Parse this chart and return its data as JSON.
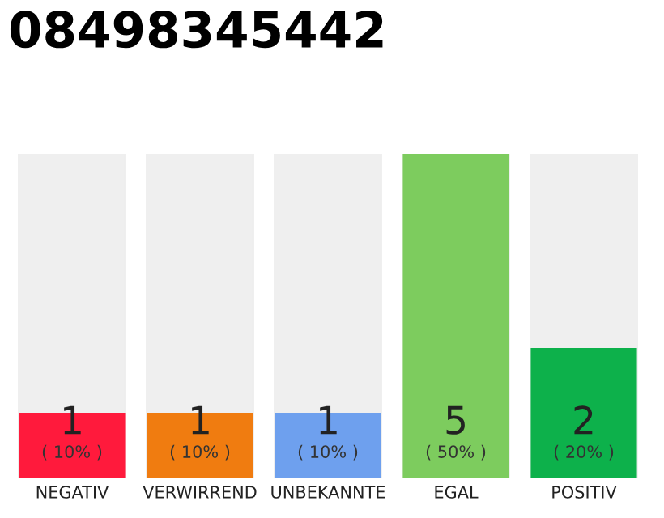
{
  "chart_data": {
    "type": "bar",
    "title": "08498345442",
    "categories": [
      "NEGATIV",
      "VERWIRREND",
      "UNBEKANNTE",
      "EGAL",
      "POSITIV"
    ],
    "values": [
      1,
      1,
      1,
      5,
      2
    ],
    "colors": [
      "#ff1a3c",
      "#f07c10",
      "#6ea0ee",
      "#7dcc5e",
      "#0db14b"
    ],
    "ylim": [
      0,
      5
    ],
    "data_labels": true,
    "grid": false,
    "legend": false,
    "tick_labels": "x",
    "annotations": [
      "( 10% )",
      "( 10% )",
      "( 10% )",
      "( 50% )",
      "( 20% )"
    ]
  }
}
